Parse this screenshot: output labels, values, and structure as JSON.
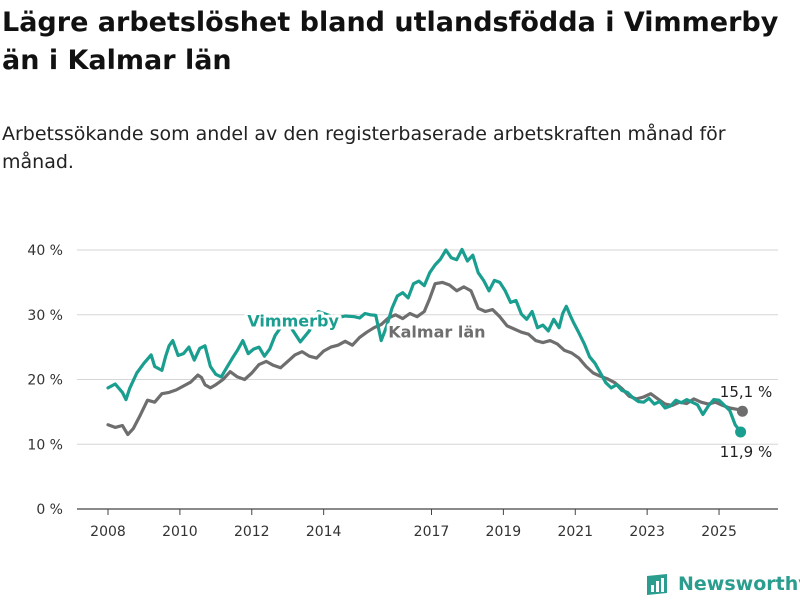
{
  "header": {
    "title": "Lägre arbetslöshet bland utlandsfödda i Vimmerby än i Kalmar län",
    "subtitle": "Arbetssökande som andel av den registerbaserade arbetskraften månad för månad."
  },
  "brand": {
    "name": "Newsworthy",
    "icon": "bar-chart-logo-icon",
    "color": "#2a9d8f"
  },
  "chart_data": {
    "type": "line",
    "y_ticks": [
      "0 %",
      "10 %",
      "20 %",
      "30 %",
      "40 %"
    ],
    "ylim": [
      0,
      40
    ],
    "xlim": [
      2008.0,
      2025.75
    ],
    "x_ticks": [
      {
        "value": 2008,
        "label": "2008"
      },
      {
        "value": 2010,
        "label": "2010"
      },
      {
        "value": 2012,
        "label": "2012"
      },
      {
        "value": 2014,
        "label": "2014"
      },
      {
        "value": 2017,
        "label": "2017"
      },
      {
        "value": 2019,
        "label": "2019"
      },
      {
        "value": 2021,
        "label": "2021"
      },
      {
        "value": 2023,
        "label": "2023"
      },
      {
        "value": 2025,
        "label": "2025"
      }
    ],
    "grid": "horizontal",
    "series": [
      {
        "name": "Kalmar län",
        "color": "#6e6e6e",
        "label_at": [
          2017.15,
          26.5
        ],
        "end_label": "15,1 %",
        "points": [
          [
            2008.0,
            13.0
          ],
          [
            2008.2,
            12.6
          ],
          [
            2008.4,
            12.9
          ],
          [
            2008.55,
            11.5
          ],
          [
            2008.7,
            12.4
          ],
          [
            2008.9,
            14.5
          ],
          [
            2009.1,
            16.8
          ],
          [
            2009.3,
            16.5
          ],
          [
            2009.5,
            17.8
          ],
          [
            2009.7,
            18.0
          ],
          [
            2009.9,
            18.4
          ],
          [
            2010.1,
            19.0
          ],
          [
            2010.3,
            19.6
          ],
          [
            2010.5,
            20.7
          ],
          [
            2010.6,
            20.3
          ],
          [
            2010.7,
            19.2
          ],
          [
            2010.85,
            18.7
          ],
          [
            2011.0,
            19.2
          ],
          [
            2011.2,
            20.0
          ],
          [
            2011.4,
            21.2
          ],
          [
            2011.6,
            20.4
          ],
          [
            2011.8,
            20.0
          ],
          [
            2012.0,
            21.0
          ],
          [
            2012.2,
            22.3
          ],
          [
            2012.4,
            22.8
          ],
          [
            2012.6,
            22.2
          ],
          [
            2012.8,
            21.8
          ],
          [
            2013.0,
            22.8
          ],
          [
            2013.2,
            23.8
          ],
          [
            2013.4,
            24.3
          ],
          [
            2013.6,
            23.6
          ],
          [
            2013.8,
            23.3
          ],
          [
            2014.0,
            24.4
          ],
          [
            2014.2,
            25.0
          ],
          [
            2014.4,
            25.3
          ],
          [
            2014.6,
            25.9
          ],
          [
            2014.8,
            25.3
          ],
          [
            2015.0,
            26.5
          ],
          [
            2015.2,
            27.3
          ],
          [
            2015.4,
            28.0
          ],
          [
            2015.6,
            28.5
          ],
          [
            2015.8,
            29.5
          ],
          [
            2016.0,
            30.0
          ],
          [
            2016.2,
            29.4
          ],
          [
            2016.4,
            30.2
          ],
          [
            2016.6,
            29.7
          ],
          [
            2016.8,
            30.5
          ],
          [
            2016.95,
            32.5
          ],
          [
            2017.1,
            34.8
          ],
          [
            2017.3,
            35.0
          ],
          [
            2017.5,
            34.6
          ],
          [
            2017.7,
            33.7
          ],
          [
            2017.9,
            34.3
          ],
          [
            2018.1,
            33.7
          ],
          [
            2018.3,
            31.0
          ],
          [
            2018.5,
            30.5
          ],
          [
            2018.7,
            30.8
          ],
          [
            2018.9,
            29.7
          ],
          [
            2019.1,
            28.3
          ],
          [
            2019.3,
            27.8
          ],
          [
            2019.5,
            27.3
          ],
          [
            2019.7,
            27.0
          ],
          [
            2019.9,
            26.0
          ],
          [
            2020.1,
            25.7
          ],
          [
            2020.3,
            26.0
          ],
          [
            2020.5,
            25.5
          ],
          [
            2020.7,
            24.5
          ],
          [
            2020.9,
            24.1
          ],
          [
            2021.1,
            23.3
          ],
          [
            2021.3,
            22.0
          ],
          [
            2021.5,
            21.0
          ],
          [
            2021.7,
            20.5
          ],
          [
            2021.9,
            20.1
          ],
          [
            2022.1,
            19.5
          ],
          [
            2022.3,
            18.6
          ],
          [
            2022.5,
            17.4
          ],
          [
            2022.7,
            17.0
          ],
          [
            2022.9,
            17.3
          ],
          [
            2023.1,
            17.8
          ],
          [
            2023.3,
            17.0
          ],
          [
            2023.5,
            16.2
          ],
          [
            2023.7,
            16.0
          ],
          [
            2023.9,
            16.5
          ],
          [
            2024.1,
            16.3
          ],
          [
            2024.3,
            17.0
          ],
          [
            2024.5,
            16.5
          ],
          [
            2024.7,
            16.2
          ],
          [
            2024.9,
            16.5
          ],
          [
            2025.1,
            16.0
          ],
          [
            2025.3,
            15.6
          ],
          [
            2025.5,
            15.4
          ],
          [
            2025.65,
            15.1
          ]
        ]
      },
      {
        "name": "Vimmerby",
        "color": "#1a9e8f",
        "label_at": [
          2013.15,
          28.2
        ],
        "end_label": "11,9 %",
        "points": [
          [
            2008.0,
            18.7
          ],
          [
            2008.2,
            19.3
          ],
          [
            2008.4,
            18.0
          ],
          [
            2008.5,
            16.9
          ],
          [
            2008.6,
            18.6
          ],
          [
            2008.8,
            21.0
          ],
          [
            2009.0,
            22.5
          ],
          [
            2009.2,
            23.8
          ],
          [
            2009.3,
            22.0
          ],
          [
            2009.5,
            21.4
          ],
          [
            2009.6,
            23.5
          ],
          [
            2009.7,
            25.2
          ],
          [
            2009.8,
            26.0
          ],
          [
            2009.95,
            23.7
          ],
          [
            2010.1,
            24.0
          ],
          [
            2010.25,
            25.0
          ],
          [
            2010.4,
            23.0
          ],
          [
            2010.55,
            24.8
          ],
          [
            2010.7,
            25.2
          ],
          [
            2010.85,
            22.0
          ],
          [
            2011.0,
            20.8
          ],
          [
            2011.15,
            20.4
          ],
          [
            2011.3,
            21.8
          ],
          [
            2011.45,
            23.2
          ],
          [
            2011.6,
            24.5
          ],
          [
            2011.75,
            26.0
          ],
          [
            2011.9,
            24.0
          ],
          [
            2012.05,
            24.7
          ],
          [
            2012.2,
            25.0
          ],
          [
            2012.35,
            23.6
          ],
          [
            2012.5,
            24.7
          ],
          [
            2012.65,
            26.8
          ],
          [
            2012.8,
            28.0
          ],
          [
            2012.95,
            29.4
          ],
          [
            2013.15,
            27.5
          ],
          [
            2013.35,
            25.8
          ],
          [
            2013.6,
            27.5
          ],
          [
            2013.85,
            30.5
          ],
          [
            2014.1,
            30.0
          ],
          [
            2014.35,
            29.5
          ],
          [
            2014.6,
            29.8
          ],
          [
            2014.85,
            29.7
          ],
          [
            2015.0,
            29.5
          ],
          [
            2015.15,
            30.2
          ],
          [
            2015.3,
            30.0
          ],
          [
            2015.45,
            29.9
          ],
          [
            2015.6,
            26.0
          ],
          [
            2015.75,
            28.2
          ],
          [
            2015.9,
            31.0
          ],
          [
            2016.05,
            32.9
          ],
          [
            2016.2,
            33.4
          ],
          [
            2016.35,
            32.6
          ],
          [
            2016.5,
            34.8
          ],
          [
            2016.65,
            35.2
          ],
          [
            2016.8,
            34.5
          ],
          [
            2016.95,
            36.5
          ],
          [
            2017.1,
            37.7
          ],
          [
            2017.25,
            38.6
          ],
          [
            2017.4,
            40.0
          ],
          [
            2017.55,
            38.8
          ],
          [
            2017.7,
            38.5
          ],
          [
            2017.85,
            40.1
          ],
          [
            2018.0,
            38.3
          ],
          [
            2018.15,
            39.2
          ],
          [
            2018.3,
            36.5
          ],
          [
            2018.45,
            35.3
          ],
          [
            2018.6,
            33.7
          ],
          [
            2018.75,
            35.3
          ],
          [
            2018.9,
            35.0
          ],
          [
            2019.05,
            33.7
          ],
          [
            2019.2,
            31.9
          ],
          [
            2019.35,
            32.2
          ],
          [
            2019.5,
            30.1
          ],
          [
            2019.65,
            29.3
          ],
          [
            2019.8,
            30.5
          ],
          [
            2019.95,
            28.0
          ],
          [
            2020.1,
            28.4
          ],
          [
            2020.25,
            27.5
          ],
          [
            2020.4,
            29.3
          ],
          [
            2020.55,
            28.0
          ],
          [
            2020.65,
            30.2
          ],
          [
            2020.75,
            31.3
          ],
          [
            2020.85,
            30.0
          ],
          [
            2020.95,
            28.8
          ],
          [
            2021.1,
            27.2
          ],
          [
            2021.25,
            25.5
          ],
          [
            2021.4,
            23.5
          ],
          [
            2021.55,
            22.5
          ],
          [
            2021.7,
            21.0
          ],
          [
            2021.85,
            19.5
          ],
          [
            2022.0,
            18.7
          ],
          [
            2022.15,
            19.2
          ],
          [
            2022.3,
            18.3
          ],
          [
            2022.45,
            18.0
          ],
          [
            2022.6,
            17.2
          ],
          [
            2022.75,
            16.6
          ],
          [
            2022.9,
            16.5
          ],
          [
            2023.05,
            17.1
          ],
          [
            2023.2,
            16.2
          ],
          [
            2023.35,
            16.6
          ],
          [
            2023.5,
            15.6
          ],
          [
            2023.65,
            15.9
          ],
          [
            2023.8,
            16.8
          ],
          [
            2023.95,
            16.4
          ],
          [
            2024.1,
            16.9
          ],
          [
            2024.25,
            16.5
          ],
          [
            2024.4,
            16.1
          ],
          [
            2024.55,
            14.6
          ],
          [
            2024.7,
            15.9
          ],
          [
            2024.85,
            16.9
          ],
          [
            2025.0,
            16.8
          ],
          [
            2025.15,
            16.0
          ],
          [
            2025.3,
            15.2
          ],
          [
            2025.45,
            13.0
          ],
          [
            2025.6,
            11.9
          ]
        ]
      }
    ]
  }
}
